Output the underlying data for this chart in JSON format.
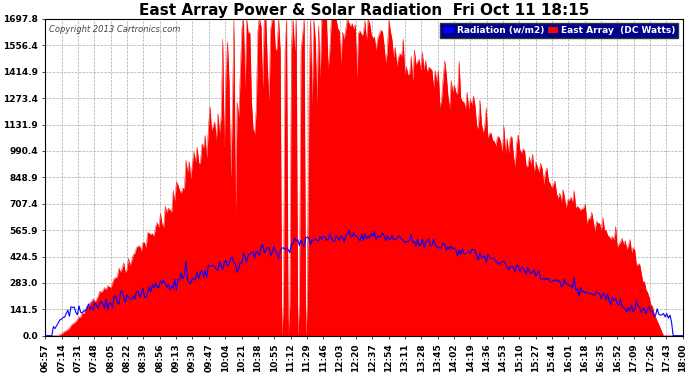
{
  "title": "East Array Power & Solar Radiation  Fri Oct 11 18:15",
  "copyright": "Copyright 2013 Cartronics.com",
  "legend_radiation": "Radiation (w/m2)",
  "legend_east": "East Array  (DC Watts)",
  "yticks": [
    0.0,
    141.5,
    283.0,
    424.5,
    565.9,
    707.4,
    848.9,
    990.4,
    1131.9,
    1273.4,
    1414.9,
    1556.4,
    1697.8
  ],
  "ymax": 1697.8,
  "ymin": 0.0,
  "radiation_color": "#0000ff",
  "east_color": "#ff0000",
  "background_color": "#ffffff",
  "grid_color": "#aaaaaa",
  "title_fontsize": 11,
  "tick_fontsize": 6.5,
  "xtick_labels": [
    "06:57",
    "07:14",
    "07:31",
    "07:48",
    "08:05",
    "08:22",
    "08:39",
    "08:56",
    "09:13",
    "09:30",
    "09:47",
    "10:04",
    "10:21",
    "10:38",
    "10:55",
    "11:12",
    "11:29",
    "11:46",
    "12:03",
    "12:20",
    "12:37",
    "12:54",
    "13:11",
    "13:28",
    "13:45",
    "14:02",
    "14:19",
    "14:36",
    "14:53",
    "15:10",
    "15:27",
    "15:44",
    "16:01",
    "16:18",
    "16:35",
    "16:52",
    "17:09",
    "17:26",
    "17:43",
    "18:00"
  ]
}
